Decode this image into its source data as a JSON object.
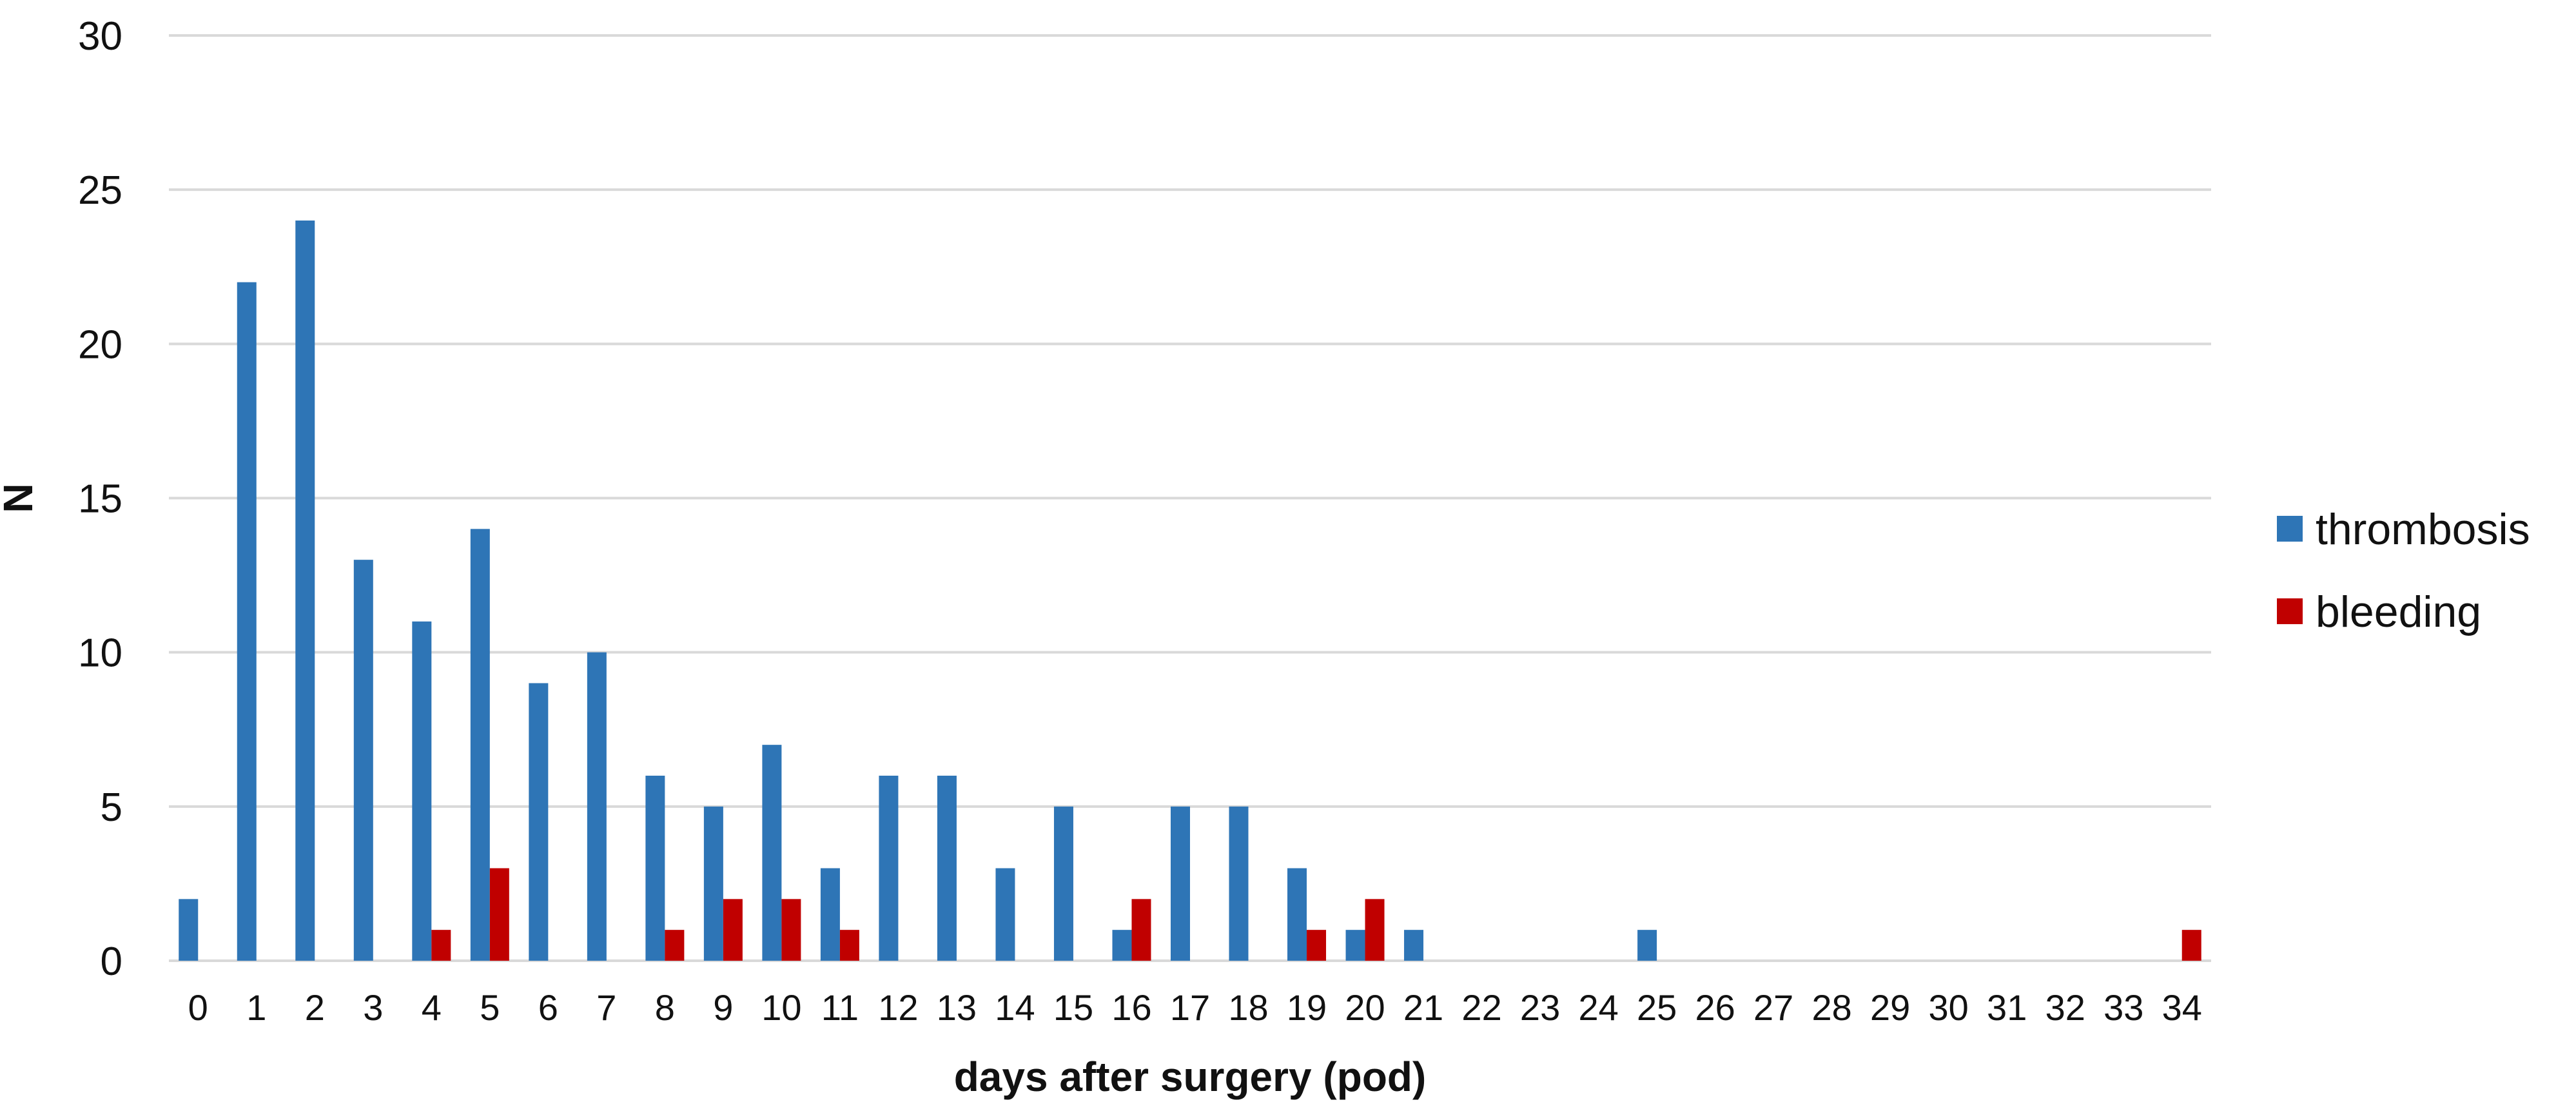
{
  "chart_data": {
    "type": "bar",
    "xlabel": "days after surgery (pod)",
    "ylabel": "N",
    "ylim": [
      0,
      30
    ],
    "yticks": [
      "0",
      "5",
      "10",
      "15",
      "20",
      "25",
      "30"
    ],
    "grid": true,
    "legend_position": "right",
    "categories": [
      "0",
      "1",
      "2",
      "3",
      "4",
      "5",
      "6",
      "7",
      "8",
      "9",
      "10",
      "11",
      "12",
      "13",
      "14",
      "15",
      "16",
      "17",
      "18",
      "19",
      "20",
      "21",
      "22",
      "23",
      "24",
      "25",
      "26",
      "27",
      "28",
      "29",
      "30",
      "31",
      "32",
      "33",
      "34"
    ],
    "series": [
      {
        "name": "thrombosis",
        "color": "#2E75B6",
        "values": [
          2,
          22,
          24,
          13,
          11,
          14,
          9,
          10,
          6,
          5,
          7,
          3,
          6,
          6,
          3,
          5,
          1,
          5,
          5,
          3,
          1,
          1,
          0,
          0,
          0,
          1,
          0,
          0,
          0,
          0,
          0,
          0,
          0,
          0,
          0
        ]
      },
      {
        "name": "bleeding",
        "color": "#C00000",
        "values": [
          0,
          0,
          0,
          0,
          1,
          3,
          0,
          0,
          1,
          2,
          2,
          1,
          0,
          0,
          0,
          0,
          2,
          0,
          0,
          1,
          2,
          0,
          0,
          0,
          0,
          0,
          0,
          0,
          0,
          0,
          0,
          0,
          0,
          0,
          1
        ]
      }
    ]
  }
}
